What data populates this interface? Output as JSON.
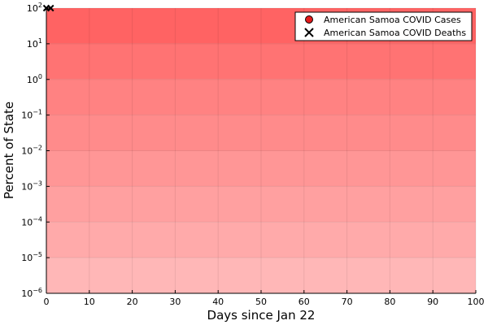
{
  "chart_data": {
    "type": "scatter",
    "title": "",
    "xlabel": "Days since Jan 22",
    "ylabel": "Percent of State",
    "xlim": [
      0,
      100
    ],
    "ylim_exponents": [
      -6,
      2
    ],
    "yscale": "log10",
    "x_ticks": [
      0,
      10,
      20,
      30,
      40,
      50,
      60,
      70,
      80,
      90,
      100
    ],
    "y_tick_exponents": [
      -6,
      -5,
      -4,
      -3,
      -2,
      -1,
      0,
      1,
      2
    ],
    "grid": true,
    "legend_position": "top-right",
    "band_colors": [
      "#ffb7b7",
      "#ffaaaa",
      "#ffa0a0",
      "#ff9696",
      "#ff8b8b",
      "#ff8282",
      "#ff7373",
      "#ff6363"
    ],
    "series": [
      {
        "name": "American Samoa COVID Cases",
        "marker": "circle",
        "color": "#e31a1c",
        "x": [],
        "y": []
      },
      {
        "name": "American Samoa COVID Deaths",
        "marker": "cross",
        "color": "#000000",
        "x": [
          0,
          1
        ],
        "y": [
          100,
          100
        ]
      }
    ]
  }
}
